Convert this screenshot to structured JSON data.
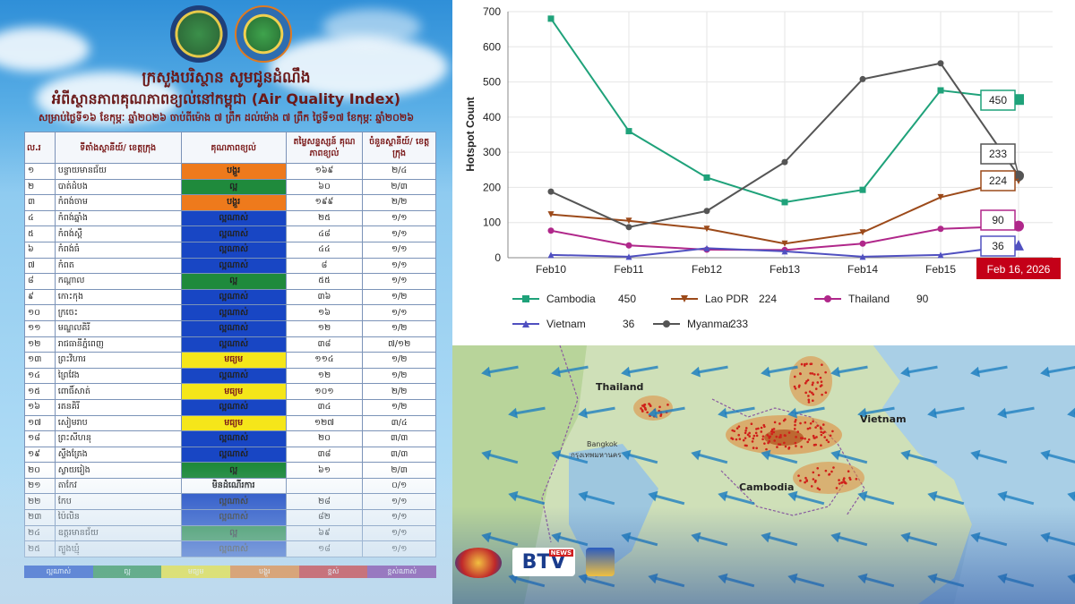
{
  "header": {
    "ministry_title": "ក្រសួងបរិស្ថាន សូមជូនដំណឹង",
    "aqi_title": "អំពីស្ថានភាពគុណភាពខ្យល់នៅកម្ពុជា (Air Quality Index)",
    "date_line": "សម្រាប់ថ្ងៃទី១៦ ខែកុម្ភៈ ឆ្នាំ២០២៦ ចាប់ពីម៉ោង ៧ ព្រឹក ដល់ម៉ោង ៧ ព្រឹក ថ្ងៃទី១៧ ខែកុម្ភៈ ឆ្នាំ២០២៦"
  },
  "table": {
    "headers": [
      "ល.រ",
      "ទីតាំងស្ថានីយ៍/ ខេត្តក្រុង",
      "គុណភាពខ្យល់",
      "តម្លៃសន្ទស្សន៍ គុណភាពខ្យល់",
      "ចំនួនស្ថានីយ៍/ ខេត្តក្រុង"
    ],
    "rows": [
      {
        "no": "១",
        "province": "បន្ទាយមានជ័យ",
        "quality": "បង្គួរ",
        "value": "១៦៩",
        "stations": "២/៤",
        "color": "#ee7a1c"
      },
      {
        "no": "២",
        "province": "បាត់ដំបង",
        "quality": "ល្អ",
        "value": "៦០",
        "stations": "២/៣",
        "color": "#1f8a3c"
      },
      {
        "no": "៣",
        "province": "កំពង់ចាម",
        "quality": "បង្គួរ",
        "value": "១៩៩",
        "stations": "២/២",
        "color": "#ee7a1c"
      },
      {
        "no": "៤",
        "province": "កំពង់ឆ្នាំង",
        "quality": "ល្អណាស់",
        "value": "២៥",
        "stations": "១/១",
        "color": "#1846c4"
      },
      {
        "no": "៥",
        "province": "កំពង់ស្ពឺ",
        "quality": "ល្អណាស់",
        "value": "៤៨",
        "stations": "១/១",
        "color": "#1846c4"
      },
      {
        "no": "៦",
        "province": "កំពង់ធំ",
        "quality": "ល្អណាស់",
        "value": "៤៤",
        "stations": "១/១",
        "color": "#1846c4"
      },
      {
        "no": "៧",
        "province": "កំពត",
        "quality": "ល្អណាស់",
        "value": "៨",
        "stations": "១/១",
        "color": "#1846c4"
      },
      {
        "no": "៨",
        "province": "កណ្ដាល",
        "quality": "ល្អ",
        "value": "៥៥",
        "stations": "១/១",
        "color": "#1f8a3c"
      },
      {
        "no": "៩",
        "province": "កោះកុង",
        "quality": "ល្អណាស់",
        "value": "៣៦",
        "stations": "១/២",
        "color": "#1846c4"
      },
      {
        "no": "១០",
        "province": "ក្រចេះ",
        "quality": "ល្អណាស់",
        "value": "១៦",
        "stations": "១/១",
        "color": "#1846c4"
      },
      {
        "no": "១១",
        "province": "មណ្ឌលគិរី",
        "quality": "ល្អណាស់",
        "value": "១២",
        "stations": "១/២",
        "color": "#1846c4"
      },
      {
        "no": "១២",
        "province": "រាជធានីភ្នំពេញ",
        "quality": "ល្អណាស់",
        "value": "៣៨",
        "stations": "៧/១២",
        "color": "#1846c4"
      },
      {
        "no": "១៣",
        "province": "ព្រះវិហារ",
        "quality": "មធ្យម",
        "value": "១១៤",
        "stations": "១/២",
        "color": "#f5e61a"
      },
      {
        "no": "១៤",
        "province": "ព្រៃវែង",
        "quality": "ល្អណាស់",
        "value": "១២",
        "stations": "១/២",
        "color": "#1846c4"
      },
      {
        "no": "១៥",
        "province": "ពោធិ៍សាត់",
        "quality": "មធ្យម",
        "value": "១០១",
        "stations": "២/២",
        "color": "#f5e61a"
      },
      {
        "no": "១៦",
        "province": "រតនគិរី",
        "quality": "ល្អណាស់",
        "value": "៣៤",
        "stations": "១/២",
        "color": "#1846c4"
      },
      {
        "no": "១៧",
        "province": "សៀមរាប",
        "quality": "មធ្យម",
        "value": "១២៧",
        "stations": "៣/៤",
        "color": "#f5e61a"
      },
      {
        "no": "១៨",
        "province": "ព្រះសីហនុ",
        "quality": "ល្អណាស់",
        "value": "២០",
        "stations": "៣/៣",
        "color": "#1846c4"
      },
      {
        "no": "១៩",
        "province": "ស្ទឹងត្រែង",
        "quality": "ល្អណាស់",
        "value": "៣៨",
        "stations": "៣/៣",
        "color": "#1846c4"
      },
      {
        "no": "២០",
        "province": "ស្វាយរៀង",
        "quality": "ល្អ",
        "value": "៦១",
        "stations": "២/៣",
        "color": "#1f8a3c"
      },
      {
        "no": "២១",
        "province": "តាកែវ",
        "quality": "មិនដំណើរការ",
        "value": "",
        "stations": "០/១",
        "color": "#ffffff"
      },
      {
        "no": "២២",
        "province": "កែប",
        "quality": "ល្អណាស់",
        "value": "២៨",
        "stations": "១/១",
        "color": "#1846c4"
      },
      {
        "no": "២៣",
        "province": "ប៉ៃលិន",
        "quality": "ល្អណាស់",
        "value": "៨២",
        "stations": "១/១",
        "color": "#1846c4"
      },
      {
        "no": "២៤",
        "province": "ឧត្តរមានជ័យ",
        "quality": "ល្អ",
        "value": "៦៩",
        "stations": "១/១",
        "color": "#1f8a3c"
      },
      {
        "no": "២៥",
        "province": "ត្បូងឃ្មុំ",
        "quality": "ល្អណាស់",
        "value": "១៨",
        "stations": "១/១",
        "color": "#1846c4"
      }
    ]
  },
  "legend": [
    {
      "label": "ល្អណាស់",
      "color": "#1846c4"
    },
    {
      "label": "ល្អ",
      "color": "#1f8a3c"
    },
    {
      "label": "មធ្យម",
      "color": "#f5e61a"
    },
    {
      "label": "បង្គួរ",
      "color": "#ee7a1c"
    },
    {
      "label": "ខ្ពស់",
      "color": "#d02020"
    },
    {
      "label": "ខ្ពស់ណាស់",
      "color": "#7a2a9a"
    }
  ],
  "chart_data": {
    "type": "line",
    "title": "",
    "xlabel": "",
    "ylabel": "Hotspot Count",
    "x": [
      "Feb10",
      "Feb11",
      "Feb12",
      "Feb13",
      "Feb14",
      "Feb15",
      "Feb 16, 2026"
    ],
    "ylim": [
      0,
      700
    ],
    "yticks": [
      0,
      100,
      200,
      300,
      400,
      500,
      600,
      700
    ],
    "grid": true,
    "highlight_label": "Feb 16, 2026",
    "series": [
      {
        "name": "Cambodia",
        "color": "#1fa27a",
        "marker": "square",
        "values": [
          680,
          360,
          228,
          158,
          193,
          476,
          450
        ],
        "last_label": "450"
      },
      {
        "name": "Lao PDR",
        "color": "#9c4a1a",
        "marker": "triangle-down",
        "values": [
          123,
          105,
          82,
          40,
          72,
          172,
          224
        ],
        "last_label": "224"
      },
      {
        "name": "Thailand",
        "color": "#b0278a",
        "marker": "circle",
        "values": [
          77,
          35,
          23,
          22,
          40,
          82,
          90
        ],
        "last_label": "90"
      },
      {
        "name": "Vietnam",
        "color": "#5050c0",
        "marker": "triangle-up",
        "values": [
          8,
          3,
          27,
          18,
          3,
          8,
          36
        ],
        "last_label": "36"
      },
      {
        "name": "Myanmar",
        "color": "#555555",
        "marker": "circle",
        "values": [
          188,
          87,
          133,
          272,
          508,
          553,
          233
        ],
        "last_label": "233"
      }
    ]
  },
  "map": {
    "labels": {
      "thailand": "Thailand",
      "vietnam": "Vietnam",
      "cambodia": "Cambodia",
      "bangkok": "Bangkok",
      "bangkok_kh": "กรุงเทพมหานคร"
    }
  },
  "broadcaster": {
    "btv": "BTV",
    "news": "NEWS"
  }
}
